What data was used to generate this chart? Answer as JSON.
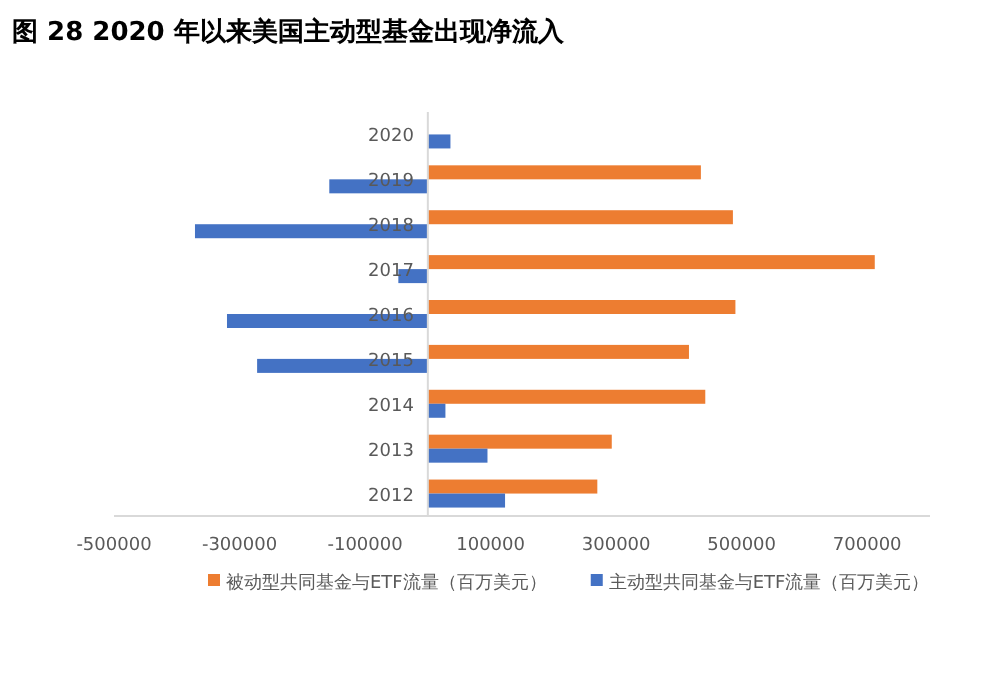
{
  "chart_data": {
    "type": "bar",
    "orientation": "horizontal",
    "title": "图 28 2020 年以来美国主动型基金出现净流入",
    "categories": [
      "2020",
      "2019",
      "2018",
      "2017",
      "2016",
      "2015",
      "2014",
      "2013",
      "2012"
    ],
    "series": [
      {
        "name": "被动型共同基金与ETF流量（百万美元）",
        "color": "#ed7d31",
        "values": [
          null,
          435000,
          486000,
          712000,
          490000,
          416000,
          442000,
          293000,
          270000
        ]
      },
      {
        "name": "主动型共同基金与ETF流量（百万美元）",
        "color": "#4472c4",
        "values": [
          36000,
          -157000,
          -371000,
          -47000,
          -320000,
          -272000,
          28000,
          95000,
          123000
        ]
      }
    ],
    "xlim": [
      -500000,
      800000
    ],
    "xticks": [
      -500000,
      -300000,
      -100000,
      100000,
      300000,
      500000,
      700000
    ],
    "legend": "bottom",
    "grid": false
  }
}
